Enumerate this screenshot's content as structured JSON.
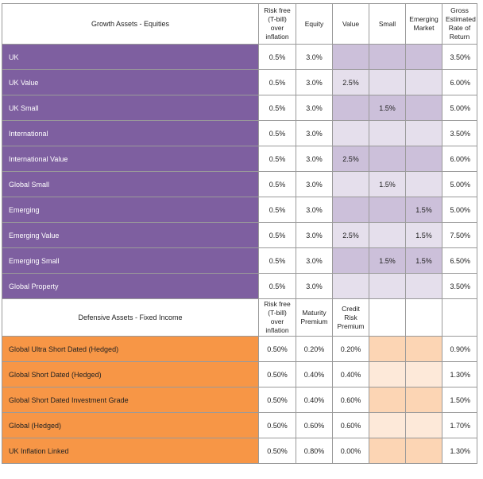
{
  "equities": {
    "title": "Growth Assets - Equities",
    "headers": [
      "Risk free (T-bill) over inflation",
      "Equity",
      "Value",
      "Small",
      "Emerging Market",
      "Gross Estimated Rate of Return"
    ],
    "rows": [
      {
        "label": "UK",
        "rf": "0.5%",
        "equity": "3.0%",
        "value": "",
        "small": "",
        "emerging": "",
        "gross": "3.50%"
      },
      {
        "label": "UK Value",
        "rf": "0.5%",
        "equity": "3.0%",
        "value": "2.5%",
        "small": "",
        "emerging": "",
        "gross": "6.00%"
      },
      {
        "label": "UK Small",
        "rf": "0.5%",
        "equity": "3.0%",
        "value": "",
        "small": "1.5%",
        "emerging": "",
        "gross": "5.00%"
      },
      {
        "label": "International",
        "rf": "0.5%",
        "equity": "3.0%",
        "value": "",
        "small": "",
        "emerging": "",
        "gross": "3.50%"
      },
      {
        "label": "International Value",
        "rf": "0.5%",
        "equity": "3.0%",
        "value": "2.5%",
        "small": "",
        "emerging": "",
        "gross": "6.00%"
      },
      {
        "label": "Global Small",
        "rf": "0.5%",
        "equity": "3.0%",
        "value": "",
        "small": "1.5%",
        "emerging": "",
        "gross": "5.00%"
      },
      {
        "label": "Emerging",
        "rf": "0.5%",
        "equity": "3.0%",
        "value": "",
        "small": "",
        "emerging": "1.5%",
        "gross": "5.00%"
      },
      {
        "label": "Emerging Value",
        "rf": "0.5%",
        "equity": "3.0%",
        "value": "2.5%",
        "small": "",
        "emerging": "1.5%",
        "gross": "7.50%"
      },
      {
        "label": "Emerging Small",
        "rf": "0.5%",
        "equity": "3.0%",
        "value": "",
        "small": "1.5%",
        "emerging": "1.5%",
        "gross": "6.50%"
      },
      {
        "label": "Global Property",
        "rf": "0.5%",
        "equity": "3.0%",
        "value": "",
        "small": "",
        "emerging": "",
        "gross": "3.50%"
      }
    ]
  },
  "fixed_income": {
    "title": "Defensive Assets - Fixed Income",
    "headers": [
      "Risk free (T-bill) over inflation",
      "Maturity Premium",
      "Credit Risk Premium"
    ],
    "rows": [
      {
        "label": "Global Ultra Short Dated (Hedged)",
        "rf": "0.50%",
        "maturity": "0.20%",
        "credit": "0.20%",
        "gross": "0.90%"
      },
      {
        "label": "Global Short Dated (Hedged)",
        "rf": "0.50%",
        "maturity": "0.40%",
        "credit": "0.40%",
        "gross": "1.30%"
      },
      {
        "label": "Global Short Dated Investment  Grade",
        "rf": "0.50%",
        "maturity": "0.40%",
        "credit": "0.60%",
        "gross": "1.50%"
      },
      {
        "label": "Global (Hedged)",
        "rf": "0.50%",
        "maturity": "0.60%",
        "credit": "0.60%",
        "gross": "1.70%"
      },
      {
        "label": "UK Inflation Linked",
        "rf": "0.50%",
        "maturity": "0.80%",
        "credit": "0.00%",
        "gross": "1.30%"
      }
    ]
  },
  "colors": {
    "equity_label": "#7e5fa0",
    "equity_band_light": "#e5dfec",
    "equity_band_dark": "#ccc0da",
    "fixed_label": "#f79646",
    "fixed_band_light": "#fde9d9",
    "fixed_band_dark": "#fcd5b4"
  }
}
